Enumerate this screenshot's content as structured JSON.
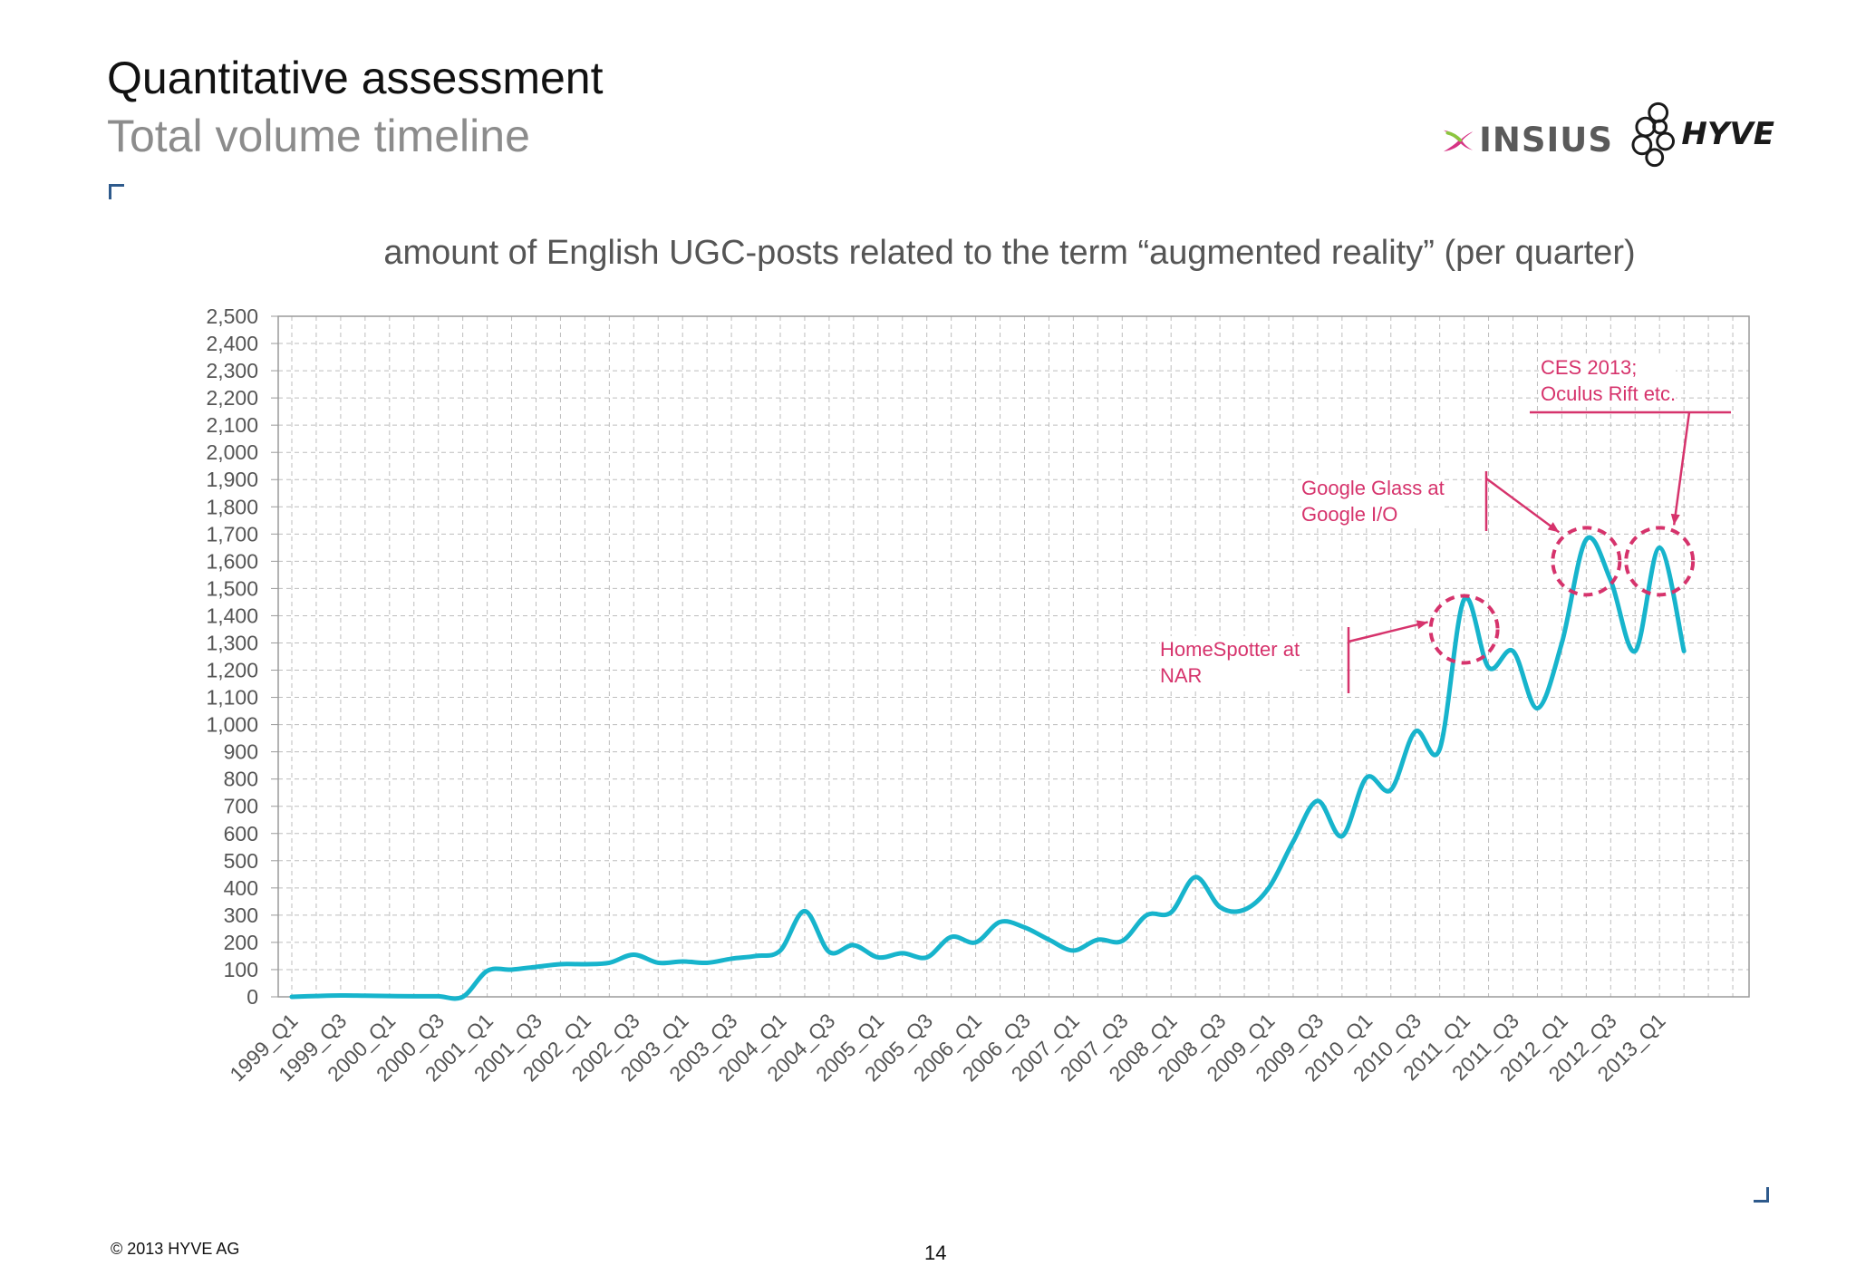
{
  "header": {
    "title": "Quantitative assessment",
    "subtitle": "Total volume timeline"
  },
  "logos": {
    "insius": "INSIUS",
    "hyve": "HYVE"
  },
  "footer": {
    "copyright": "© 2013 HYVE AG",
    "page_number": "14"
  },
  "colors": {
    "line": "#17b4cc",
    "annotation": "#d6336c",
    "grid": "#bdbdbd",
    "title_gray": "#8c8c8c"
  },
  "chart_data": {
    "type": "line",
    "title": "amount of English UGC-posts related to the term “augmented reality” (per quarter)",
    "xlabel": "",
    "ylabel": "",
    "ylim": [
      0,
      2500
    ],
    "yticks": [
      "0",
      "100",
      "200",
      "300",
      "400",
      "500",
      "600",
      "700",
      "800",
      "900",
      "1,000",
      "1,100",
      "1,200",
      "1,300",
      "1,400",
      "1,500",
      "1,600",
      "1,700",
      "1,800",
      "1,900",
      "2,000",
      "2,100",
      "2,200",
      "2,300",
      "2,400",
      "2,500"
    ],
    "x_tick_labels": [
      "1999_Q1",
      "1999_Q3",
      "2000_Q1",
      "2000_Q3",
      "2001_Q1",
      "2001_Q3",
      "2002_Q1",
      "2002_Q3",
      "2003_Q1",
      "2003_Q3",
      "2004_Q1",
      "2004_Q3",
      "2005_Q1",
      "2005_Q3",
      "2006_Q1",
      "2006_Q3",
      "2007_Q1",
      "2007_Q3",
      "2008_Q1",
      "2008_Q3",
      "2009_Q1",
      "2009_Q3",
      "2010_Q1",
      "2010_Q3",
      "2011_Q1",
      "2011_Q3",
      "2012_Q1",
      "2012_Q3",
      "2013_Q1"
    ],
    "grid": true,
    "series": [
      {
        "name": "",
        "color": "#17b4cc",
        "x": [
          "1999_Q1",
          "1999_Q2",
          "1999_Q3",
          "1999_Q4",
          "2000_Q1",
          "2000_Q2",
          "2000_Q3",
          "2000_Q4",
          "2001_Q1",
          "2001_Q2",
          "2001_Q3",
          "2001_Q4",
          "2002_Q1",
          "2002_Q2",
          "2002_Q3",
          "2002_Q4",
          "2003_Q1",
          "2003_Q2",
          "2003_Q3",
          "2003_Q4",
          "2004_Q1",
          "2004_Q2",
          "2004_Q3",
          "2004_Q4",
          "2005_Q1",
          "2005_Q2",
          "2005_Q3",
          "2005_Q4",
          "2006_Q1",
          "2006_Q2",
          "2006_Q3",
          "2006_Q4",
          "2007_Q1",
          "2007_Q2",
          "2007_Q3",
          "2007_Q4",
          "2008_Q1",
          "2008_Q2",
          "2008_Q3",
          "2008_Q4",
          "2009_Q1",
          "2009_Q2",
          "2009_Q3",
          "2009_Q4",
          "2010_Q1",
          "2010_Q2",
          "2010_Q3",
          "2010_Q4",
          "2011_Q1",
          "2011_Q2",
          "2011_Q3",
          "2011_Q4",
          "2012_Q1",
          "2012_Q2",
          "2012_Q3",
          "2012_Q4",
          "2013_Q1",
          "2013_Q2"
        ],
        "values": [
          0,
          3,
          5,
          4,
          3,
          2,
          2,
          0,
          95,
          100,
          110,
          120,
          120,
          125,
          155,
          125,
          130,
          125,
          140,
          150,
          170,
          315,
          165,
          190,
          145,
          160,
          145,
          220,
          200,
          275,
          255,
          210,
          170,
          210,
          205,
          300,
          310,
          440,
          330,
          320,
          400,
          570,
          720,
          590,
          805,
          760,
          975,
          910,
          1460,
          1210,
          1270,
          1060,
          1300,
          1680,
          1530,
          1270,
          1650,
          1270
        ]
      }
    ],
    "annotations": [
      {
        "text": "HomeSpotter at\nNAR",
        "target": "2011_Q1"
      },
      {
        "text": "Google Glass at\nGoogle I/O",
        "target": "2012_Q2"
      },
      {
        "text": "CES 2013;\nOculus Rift etc.",
        "target": "2013_Q1"
      }
    ]
  }
}
